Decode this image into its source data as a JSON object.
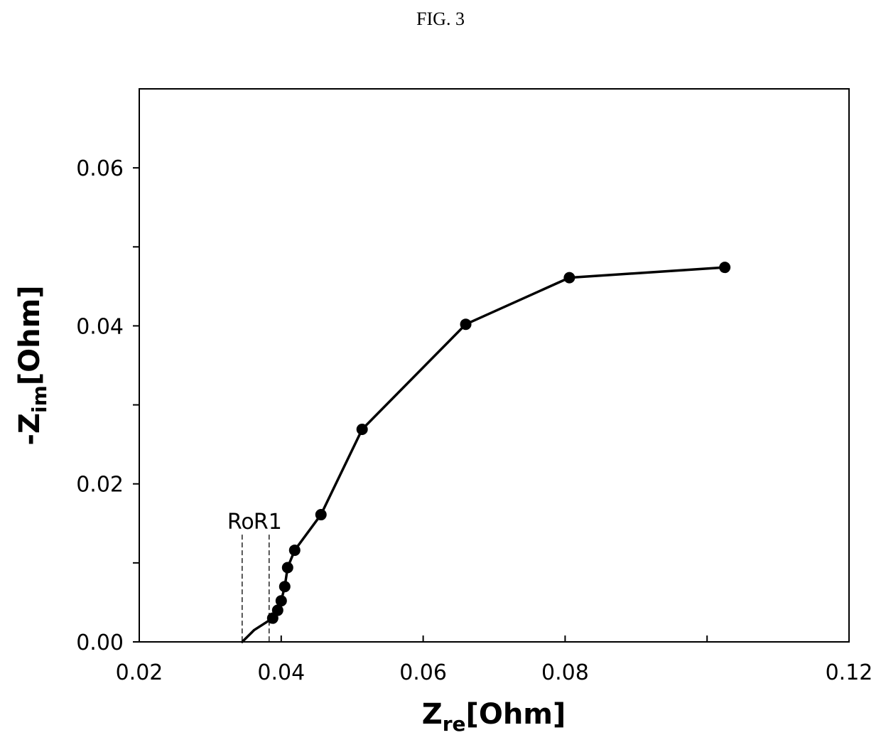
{
  "figure": {
    "label": "FIG. 3"
  },
  "chart_data": {
    "type": "line",
    "title": "",
    "x": [
      0.0345,
      0.0362,
      0.0388,
      0.0392,
      0.0395,
      0.04,
      0.0405,
      0.0409,
      0.0419,
      0.0456,
      0.0514,
      0.066,
      0.0806,
      0.1025
    ],
    "series": [
      {
        "values": [
          0.0,
          0.0015,
          0.003,
          0.0035,
          0.004,
          0.0052,
          0.007,
          0.0094,
          0.0116,
          0.0161,
          0.0269,
          0.0402,
          0.0461,
          0.0474
        ],
        "markers": [
          false,
          false,
          true,
          false,
          true,
          true,
          true,
          true,
          true,
          true,
          true,
          true,
          true,
          true
        ]
      }
    ],
    "xlim": [
      0.02,
      0.12
    ],
    "ylim": [
      0.0,
      0.07
    ],
    "x_ticks": [
      {
        "value": 0.02,
        "label": "0.02"
      },
      {
        "value": 0.04,
        "label": "0.04"
      },
      {
        "value": 0.06,
        "label": "0.06"
      },
      {
        "value": 0.08,
        "label": "0.08"
      },
      {
        "value": 0.1,
        "label": ""
      },
      {
        "value": 0.12,
        "label": "0.12"
      }
    ],
    "y_ticks": [
      {
        "value": 0.0,
        "label": "0.00"
      },
      {
        "value": 0.01,
        "label": ""
      },
      {
        "value": 0.02,
        "label": "0.02"
      },
      {
        "value": 0.03,
        "label": ""
      },
      {
        "value": 0.04,
        "label": "0.04"
      },
      {
        "value": 0.05,
        "label": ""
      },
      {
        "value": 0.06,
        "label": "0.06"
      }
    ],
    "xlabel": {
      "main": "Z",
      "sub": "re",
      "unit": "[Ohm]"
    },
    "ylabel": {
      "prefix": "-Z",
      "sub": "im",
      "unit": "[Ohm]"
    },
    "annotations": [
      {
        "label": "Ro",
        "x": 0.0345,
        "y_top": 0.0143
      },
      {
        "label": "R1",
        "x": 0.0383,
        "y_top": 0.0143
      }
    ],
    "grid": false,
    "legend": "none"
  }
}
